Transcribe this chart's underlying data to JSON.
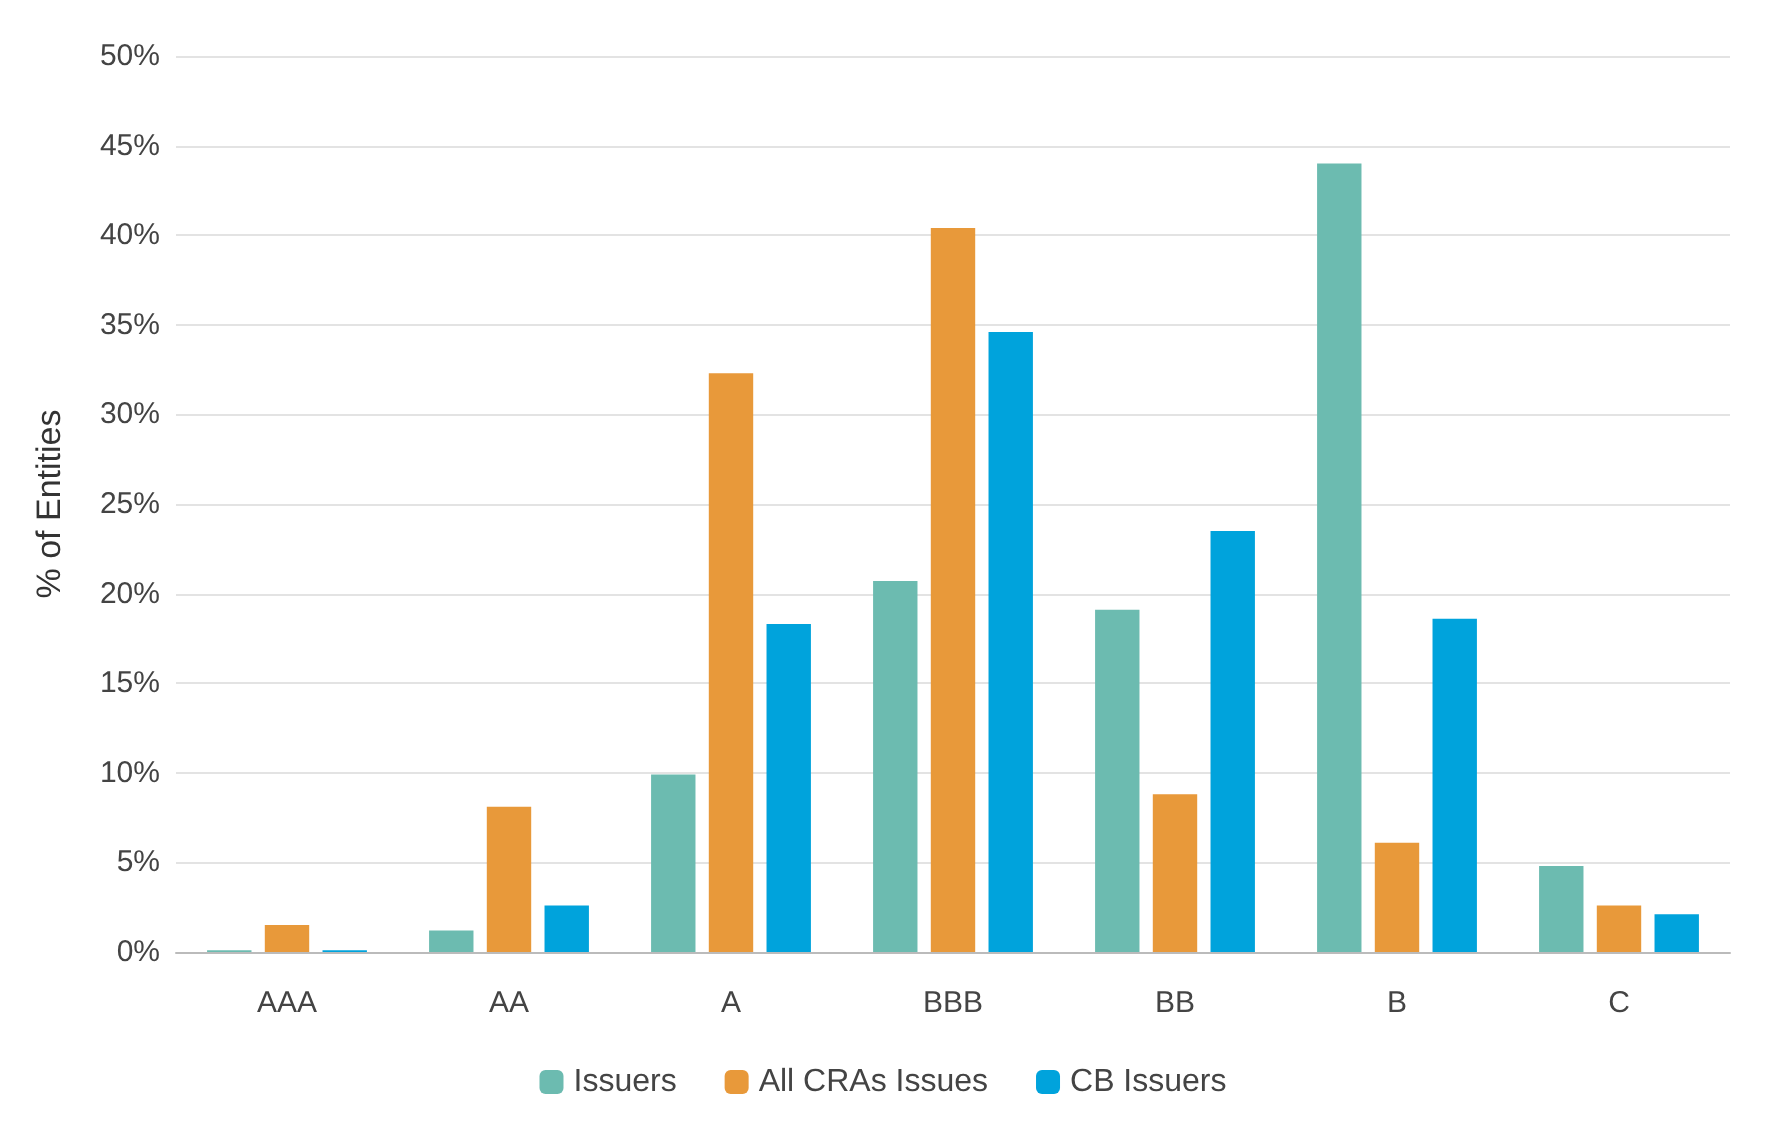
{
  "chart_data": {
    "type": "bar",
    "ylabel": "% of Entities",
    "categories": [
      "AAA",
      "AA",
      "A",
      "BBB",
      "BB",
      "B",
      "C"
    ],
    "series": [
      {
        "name": "Issuers",
        "color": "#6cbbb0",
        "values": [
          0.1,
          1.2,
          9.9,
          20.7,
          19.1,
          44.0,
          4.8
        ]
      },
      {
        "name": "All CRAs Issues",
        "color": "#e8993a",
        "values": [
          1.5,
          8.1,
          32.3,
          40.4,
          8.8,
          6.1,
          2.6
        ]
      },
      {
        "name": "CB Issuers",
        "color": "#00a3dc",
        "values": [
          0.1,
          2.6,
          18.3,
          34.6,
          23.5,
          18.6,
          2.1
        ]
      }
    ],
    "ylim": [
      0,
      50
    ],
    "yticks": [
      {
        "value": 0,
        "label": "0%"
      },
      {
        "value": 5,
        "label": "5%"
      },
      {
        "value": 10,
        "label": "10%"
      },
      {
        "value": 15,
        "label": "15%"
      },
      {
        "value": 20,
        "label": "20%"
      },
      {
        "value": 25,
        "label": "25%"
      },
      {
        "value": 30,
        "label": "30%"
      },
      {
        "value": 35,
        "label": "35%"
      },
      {
        "value": 40,
        "label": "40%"
      },
      {
        "value": 45,
        "label": "45%"
      },
      {
        "value": 50,
        "label": "50%"
      }
    ],
    "grid": "y",
    "legend": "bottom"
  }
}
